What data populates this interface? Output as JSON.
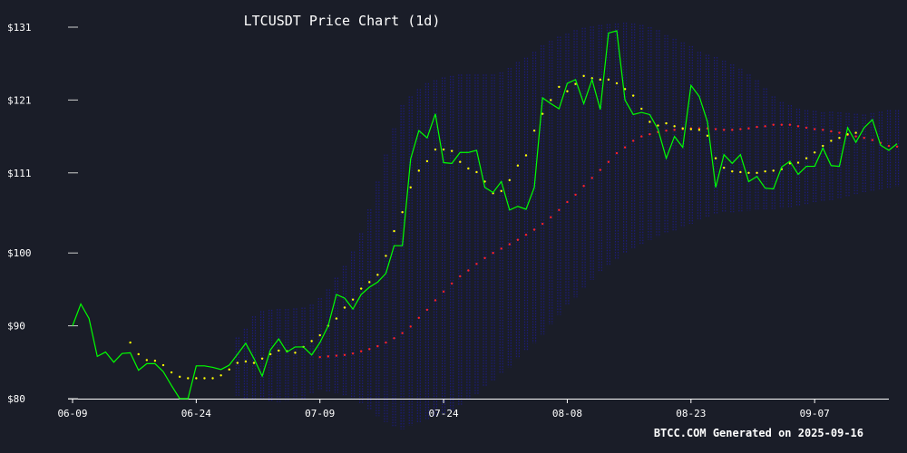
{
  "chart_data": {
    "type": "line",
    "title": "LTCUSDT Price Chart (1d)",
    "footer": "BTCC.COM Generated on 2025-09-16",
    "ylim": [
      80,
      131
    ],
    "y_ticks": [
      80,
      90,
      100,
      111,
      121,
      131
    ],
    "y_tick_labels": [
      "$80",
      "$90",
      "$100",
      "$111",
      "$121",
      "$131"
    ],
    "x_ticks": [
      0,
      15,
      30,
      45,
      60,
      75,
      90
    ],
    "x_tick_labels": [
      "06-09",
      "06-24",
      "07-09",
      "07-24",
      "08-08",
      "08-23",
      "09-07"
    ],
    "x_count": 100,
    "grid": false,
    "colors": {
      "background": "#1a1d28",
      "price": "#00ff00",
      "short_ma": "#ffff00",
      "long_ma": "#ff2222",
      "bands": "#1c1c7a",
      "axis": "#ffffff"
    },
    "series": [
      {
        "key": "price",
        "style": "line",
        "start": 0,
        "values": [
          90.0,
          93.0,
          91.0,
          85.8,
          86.4,
          85.0,
          86.2,
          86.3,
          83.9,
          84.8,
          84.8,
          83.7,
          81.8,
          80.0,
          80.0,
          84.5,
          84.5,
          84.3,
          84.0,
          84.6,
          86.1,
          87.6,
          85.5,
          83.1,
          86.7,
          88.2,
          86.4,
          87.1,
          87.1,
          86.0,
          87.7,
          90.0,
          94.3,
          93.8,
          92.3,
          94.3,
          95.3,
          96.0,
          97.2,
          101.0,
          101.0,
          112.9,
          116.8,
          115.8,
          119.1,
          112.4,
          112.3,
          113.8,
          113.8,
          114.1,
          109.0,
          108.3,
          109.8,
          105.9,
          106.4,
          106.0,
          109.0,
          121.3,
          120.5,
          119.8,
          123.3,
          123.8,
          120.5,
          123.8,
          119.7,
          130.2,
          130.5,
          121.0,
          119.0,
          119.3,
          119.0,
          117.0,
          113.0,
          116.0,
          114.5,
          123.0,
          121.5,
          118.0,
          109.0,
          113.5,
          112.3,
          113.5,
          109.8,
          110.5,
          108.9,
          108.8,
          111.8,
          112.6,
          110.8,
          111.9,
          111.9,
          114.4,
          112.0,
          111.9,
          117.2,
          115.2,
          117.2,
          118.3,
          114.8,
          114.1,
          115.0
        ]
      },
      {
        "key": "short_ma",
        "style": "dots",
        "start": 7,
        "values": [
          87.7,
          86.1,
          85.3,
          85.2,
          84.6,
          83.6,
          83.0,
          82.8,
          82.8,
          82.8,
          82.8,
          83.2,
          84.0,
          84.9,
          85.1,
          84.9,
          85.5,
          86.1,
          86.6,
          86.5,
          86.3,
          87.1,
          87.9,
          88.7,
          90.0,
          91.0,
          92.5,
          93.6,
          95.1,
          96.0,
          97.0,
          99.6,
          103.0,
          105.6,
          109.0,
          111.3,
          112.6,
          114.2,
          114.2,
          114.0,
          112.5,
          111.6,
          111.1,
          109.8,
          108.2,
          108.5,
          110.0,
          112.0,
          113.4,
          116.8,
          119.1,
          121.0,
          122.8,
          122.2,
          123.2,
          124.3,
          124.0,
          123.8,
          123.8,
          123.3,
          122.5,
          121.6,
          119.8,
          118.0,
          117.5,
          117.8,
          117.4,
          117.1,
          117.0,
          116.9,
          116.1,
          113.0,
          111.7,
          111.2,
          111.1,
          111.0,
          111.0,
          111.2,
          111.3,
          111.5,
          112.3,
          112.4,
          113.0,
          113.8,
          114.7,
          115.4,
          115.8,
          116.3,
          116.5
        ]
      },
      {
        "key": "long_ma",
        "style": "dots",
        "start": 30,
        "values": [
          85.7,
          85.8,
          85.9,
          86.0,
          86.2,
          86.5,
          86.8,
          87.2,
          87.7,
          88.3,
          89.0,
          89.9,
          91.1,
          92.2,
          93.5,
          94.7,
          95.8,
          96.8,
          97.6,
          98.5,
          99.3,
          100.0,
          100.6,
          101.2,
          101.8,
          102.5,
          103.2,
          104.0,
          104.9,
          105.9,
          107.0,
          108.0,
          109.2,
          110.3,
          111.4,
          112.5,
          113.7,
          114.5,
          115.4,
          116.0,
          116.3,
          116.6,
          116.8,
          116.9,
          117.0,
          117.1,
          117.1,
          117.1,
          117.0,
          116.9,
          116.9,
          117.0,
          117.1,
          117.3,
          117.4,
          117.6,
          117.6,
          117.6,
          117.4,
          117.2,
          117.0,
          116.9,
          116.7,
          116.5,
          116.2,
          116.0,
          115.8,
          115.5,
          115.1,
          114.7,
          114.6
        ]
      }
    ],
    "bands": {
      "start": 20,
      "upper": [
        88.4,
        89.6,
        91.3,
        92.0,
        92.2,
        92.3,
        92.3,
        92.4,
        92.5,
        92.9,
        93.8,
        95.0,
        96.6,
        98.2,
        100.2,
        102.7,
        106.0,
        109.8,
        113.5,
        117.1,
        120.3,
        121.5,
        122.5,
        123.3,
        123.7,
        124.1,
        124.3,
        124.5,
        124.5,
        124.5,
        124.5,
        124.5,
        124.8,
        125.4,
        126.2,
        126.8,
        127.6,
        128.5,
        129.1,
        129.7,
        130.1,
        130.6,
        130.9,
        131.1,
        131.3,
        131.4,
        131.5,
        131.6,
        131.5,
        131.3,
        131.0,
        130.6,
        129.9,
        129.4,
        128.9,
        128.4,
        127.6,
        127.2,
        126.9,
        126.4,
        125.9,
        125.3,
        124.5,
        123.7,
        122.6,
        121.5,
        120.7,
        120.3,
        119.8,
        119.6,
        119.5,
        119.3,
        119.4,
        119.3,
        119.2,
        119.1,
        119.0,
        119.2,
        119.4,
        119.6,
        119.6
      ],
      "lower": [
        80.4,
        80.0,
        79.7,
        79.7,
        79.7,
        79.5,
        79.6,
        79.8,
        80.0,
        80.6,
        81.1,
        80.9,
        80.8,
        80.4,
        80.0,
        79.4,
        78.5,
        77.6,
        76.8,
        76.2,
        75.8,
        76.3,
        76.6,
        77.1,
        77.5,
        77.8,
        78.3,
        79.0,
        79.8,
        80.6,
        81.7,
        82.5,
        83.4,
        84.3,
        85.5,
        86.5,
        87.6,
        88.8,
        90.2,
        91.5,
        92.8,
        93.9,
        95.2,
        96.3,
        97.5,
        98.4,
        99.2,
        100.0,
        100.7,
        101.2,
        101.8,
        102.2,
        102.7,
        103.1,
        103.5,
        104.0,
        104.6,
        105.0,
        105.3,
        105.5,
        105.6,
        105.7,
        105.8,
        105.9,
        105.9,
        106.0,
        106.1,
        106.3,
        106.4,
        106.6,
        106.8,
        107.0,
        107.2,
        107.4,
        107.7,
        108.0,
        108.2,
        108.4,
        108.7,
        108.9,
        109.1
      ]
    }
  }
}
